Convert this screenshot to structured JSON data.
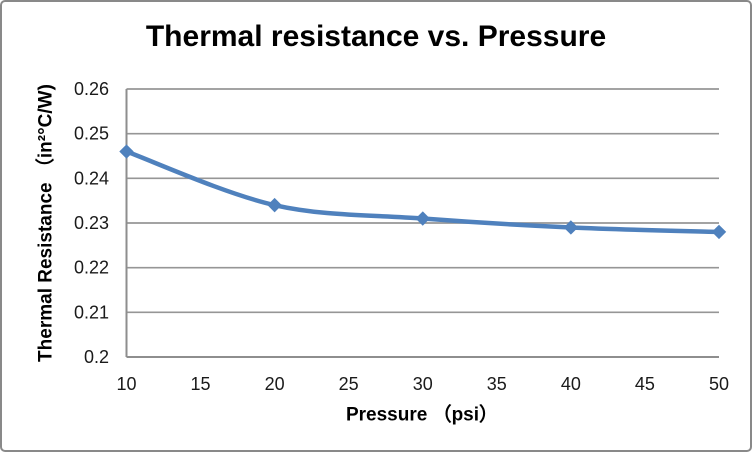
{
  "chart": {
    "title": "Thermal resistance vs. Pressure",
    "x_axis_title": "Pressure （psi）",
    "y_axis_title": "Thermal Resistance （in²°C/W)"
  },
  "chart_data": {
    "type": "line",
    "title": "Thermal resistance vs. Pressure",
    "xlabel": "Pressure （psi）",
    "ylabel": "Thermal Resistance （in²°C/W)",
    "x": [
      10,
      20,
      30,
      40,
      50
    ],
    "y": [
      0.246,
      0.234,
      0.231,
      0.229,
      0.228
    ],
    "xlim": [
      10,
      50
    ],
    "ylim": [
      0.2,
      0.26
    ],
    "xticks": [
      10,
      15,
      20,
      25,
      30,
      35,
      40,
      45,
      50
    ],
    "xtick_labels": [
      "10",
      "15",
      "20",
      "25",
      "30",
      "35",
      "40",
      "45",
      "50"
    ],
    "yticks": [
      0.2,
      0.21,
      0.22,
      0.23,
      0.24,
      0.25,
      0.26
    ],
    "ytick_labels": [
      "0.2",
      "0.21",
      "0.22",
      "0.23",
      "0.24",
      "0.25",
      "0.26"
    ],
    "grid": "horizontal",
    "legend": "none",
    "smooth": true,
    "marker": "diamond",
    "series_color": "#4F81BD",
    "grid_color": "#969696",
    "axis_color": "#8e8e8e",
    "tick_label_color": "#1a1a1a",
    "frame_border_color": "#898989"
  }
}
